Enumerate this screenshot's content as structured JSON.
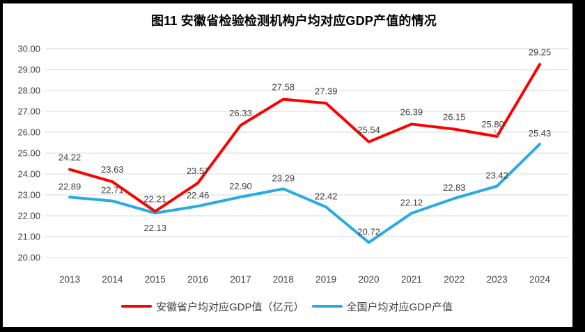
{
  "chart_data": {
    "type": "line",
    "title": "图11 安徽省检验检测机构户均对应GDP产值的情况",
    "categories": [
      "2013",
      "2014",
      "2015",
      "2016",
      "2017",
      "2018",
      "2019",
      "2020",
      "2021",
      "2022",
      "2023",
      "2024"
    ],
    "series": [
      {
        "key": "anhui",
        "name": "安徽省户均对应GDP值（亿元）",
        "color": "#FF0000",
        "values": [
          24.22,
          23.63,
          22.21,
          23.57,
          26.33,
          27.58,
          27.39,
          25.54,
          26.39,
          26.15,
          25.8,
          29.25
        ]
      },
      {
        "key": "national",
        "name": "全国户均对应GDP产值",
        "color": "#29ABE2",
        "values": [
          22.89,
          22.71,
          22.13,
          22.46,
          22.9,
          23.29,
          22.42,
          20.72,
          22.12,
          22.83,
          23.42,
          25.43
        ]
      }
    ],
    "ylim": [
      20,
      30
    ],
    "ytick_step": 1,
    "ytick_format": "0.00",
    "value_label_format": "0.00",
    "grid": true,
    "legend_position": "bottom",
    "label_overrides": {
      "1": {
        "2": "below"
      }
    },
    "callout": {
      "series_index": 0,
      "point_index": 10
    }
  },
  "colors": {
    "frame": "#000000",
    "gridline": "#D9D9D9",
    "tick_text": "#404040",
    "data_label_text": "#404040",
    "leader_line": "#A0A0A0",
    "background": "#FFFFFF"
  }
}
